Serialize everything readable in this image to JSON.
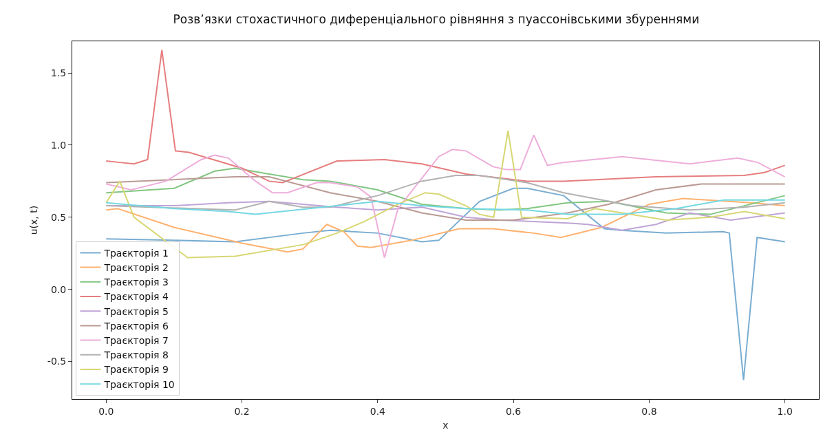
{
  "chart_data": {
    "type": "line",
    "title": "Розв’язки стохастичного диференціального рівняння з пуассонівськими збуреннями",
    "xlabel": "x",
    "ylabel": "u(x, t)",
    "xlim": [
      -0.05,
      1.05
    ],
    "ylim": [
      -0.76,
      1.72
    ],
    "xticks": [
      {
        "value": 0,
        "label": "0.0"
      },
      0.2,
      0.4,
      0.6,
      0.8,
      {
        "value": 1,
        "label": "1.0"
      }
    ],
    "yticks": [
      -0.5,
      {
        "value": 0,
        "label": "0.0"
      },
      0.5,
      {
        "value": 1,
        "label": "1.0"
      },
      1.5
    ],
    "grid": false,
    "legend": "bottom left",
    "marker": "none",
    "line_style": "solid",
    "series": [
      {
        "name": "Траєкторія 1",
        "color": "#79add2",
        "x": [
          0,
          0.1,
          0.19,
          0.29,
          0.33,
          0.4,
          0.465,
          0.49,
          0.55,
          0.6,
          0.62,
          0.674,
          0.734,
          0.758,
          0.825,
          0.909,
          0.918,
          0.939,
          0.959,
          1.0
        ],
        "values": [
          0.35,
          0.34,
          0.33,
          0.39,
          0.41,
          0.39,
          0.33,
          0.34,
          0.61,
          0.7,
          0.7,
          0.65,
          0.42,
          0.41,
          0.39,
          0.4,
          0.39,
          -0.63,
          0.36,
          0.33
        ]
      },
      {
        "name": "Траєкторія 2",
        "color": "#ffb26e",
        "x": [
          0,
          0.017,
          0.1,
          0.2,
          0.267,
          0.29,
          0.325,
          0.35,
          0.37,
          0.39,
          0.45,
          0.52,
          0.57,
          0.63,
          0.67,
          0.73,
          0.8,
          0.85,
          0.95,
          1.0
        ],
        "values": [
          0.55,
          0.56,
          0.43,
          0.32,
          0.26,
          0.28,
          0.45,
          0.4,
          0.3,
          0.29,
          0.34,
          0.42,
          0.42,
          0.39,
          0.36,
          0.43,
          0.59,
          0.63,
          0.6,
          0.58
        ]
      },
      {
        "name": "Траєкторія 3",
        "color": "#80c680",
        "x": [
          0,
          0.1,
          0.16,
          0.19,
          0.24,
          0.29,
          0.33,
          0.4,
          0.465,
          0.53,
          0.58,
          0.62,
          0.68,
          0.74,
          0.825,
          0.89,
          1.0
        ],
        "values": [
          0.67,
          0.7,
          0.82,
          0.84,
          0.8,
          0.76,
          0.75,
          0.69,
          0.59,
          0.56,
          0.55,
          0.56,
          0.6,
          0.61,
          0.53,
          0.52,
          0.65
        ]
      },
      {
        "name": "Траєкторія 4",
        "color": "#e67d7e",
        "x": [
          0,
          0.02,
          0.041,
          0.061,
          0.082,
          0.102,
          0.122,
          0.2,
          0.24,
          0.26,
          0.34,
          0.41,
          0.465,
          0.53,
          0.62,
          0.674,
          0.81,
          0.94,
          0.97,
          1.0
        ],
        "values": [
          0.89,
          0.88,
          0.87,
          0.9,
          1.66,
          0.96,
          0.95,
          0.84,
          0.75,
          0.74,
          0.89,
          0.9,
          0.87,
          0.8,
          0.75,
          0.75,
          0.78,
          0.79,
          0.81,
          0.86
        ]
      },
      {
        "name": "Траєкторія 5",
        "color": "#bfa4d7",
        "x": [
          0,
          0.1,
          0.18,
          0.24,
          0.34,
          0.4,
          0.465,
          0.53,
          0.58,
          0.68,
          0.71,
          0.76,
          0.81,
          0.86,
          0.92,
          1.0
        ],
        "values": [
          0.58,
          0.58,
          0.6,
          0.61,
          0.57,
          0.55,
          0.57,
          0.5,
          0.48,
          0.46,
          0.45,
          0.41,
          0.45,
          0.53,
          0.48,
          0.53
        ]
      },
      {
        "name": "Траєкторія 6",
        "color": "#ba9a93",
        "x": [
          0,
          0.19,
          0.24,
          0.33,
          0.4,
          0.465,
          0.53,
          0.6,
          0.68,
          0.74,
          0.81,
          0.876,
          1.0
        ],
        "values": [
          0.74,
          0.78,
          0.78,
          0.67,
          0.61,
          0.53,
          0.48,
          0.48,
          0.53,
          0.59,
          0.69,
          0.73,
          0.73
        ]
      },
      {
        "name": "Траєкторія 7",
        "color": "#eeadda",
        "x": [
          0,
          0.037,
          0.088,
          0.14,
          0.16,
          0.18,
          0.22,
          0.245,
          0.267,
          0.31,
          0.33,
          0.37,
          0.39,
          0.41,
          0.43,
          0.49,
          0.51,
          0.53,
          0.57,
          0.59,
          0.61,
          0.63,
          0.65,
          0.674,
          0.76,
          0.86,
          0.93,
          0.96,
          1.0
        ],
        "values": [
          0.73,
          0.69,
          0.75,
          0.9,
          0.93,
          0.91,
          0.75,
          0.67,
          0.67,
          0.74,
          0.74,
          0.71,
          0.64,
          0.22,
          0.56,
          0.92,
          0.97,
          0.96,
          0.85,
          0.83,
          0.83,
          1.07,
          0.86,
          0.88,
          0.92,
          0.87,
          0.91,
          0.88,
          0.78
        ]
      },
      {
        "name": "Траєкторія 8",
        "color": "#b2b2b2",
        "x": [
          0,
          0.19,
          0.24,
          0.29,
          0.33,
          0.4,
          0.465,
          0.515,
          0.55,
          0.62,
          0.674,
          0.775,
          0.86,
          0.94,
          1.0
        ],
        "values": [
          0.58,
          0.55,
          0.61,
          0.57,
          0.57,
          0.65,
          0.75,
          0.79,
          0.79,
          0.74,
          0.67,
          0.58,
          0.55,
          0.57,
          0.6
        ]
      },
      {
        "name": "Траєкторія 9",
        "color": "#d7d773",
        "x": [
          0,
          0.02,
          0.041,
          0.12,
          0.19,
          0.29,
          0.34,
          0.38,
          0.43,
          0.47,
          0.49,
          0.53,
          0.55,
          0.571,
          0.592,
          0.612,
          0.68,
          0.72,
          0.76,
          0.825,
          0.89,
          0.94,
          1.0
        ],
        "values": [
          0.6,
          0.75,
          0.5,
          0.22,
          0.23,
          0.31,
          0.39,
          0.47,
          0.59,
          0.67,
          0.66,
          0.58,
          0.52,
          0.5,
          1.1,
          0.5,
          0.49,
          0.56,
          0.53,
          0.48,
          0.5,
          0.54,
          0.49
        ]
      },
      {
        "name": "Траєкторія 10",
        "color": "#74d8e2",
        "x": [
          0,
          0.1,
          0.18,
          0.22,
          0.34,
          0.4,
          0.465,
          0.53,
          0.62,
          0.68,
          0.76,
          0.84,
          0.91,
          1.0
        ],
        "values": [
          0.6,
          0.56,
          0.54,
          0.52,
          0.58,
          0.61,
          0.58,
          0.56,
          0.55,
          0.52,
          0.52,
          0.56,
          0.62,
          0.62
        ]
      }
    ]
  }
}
